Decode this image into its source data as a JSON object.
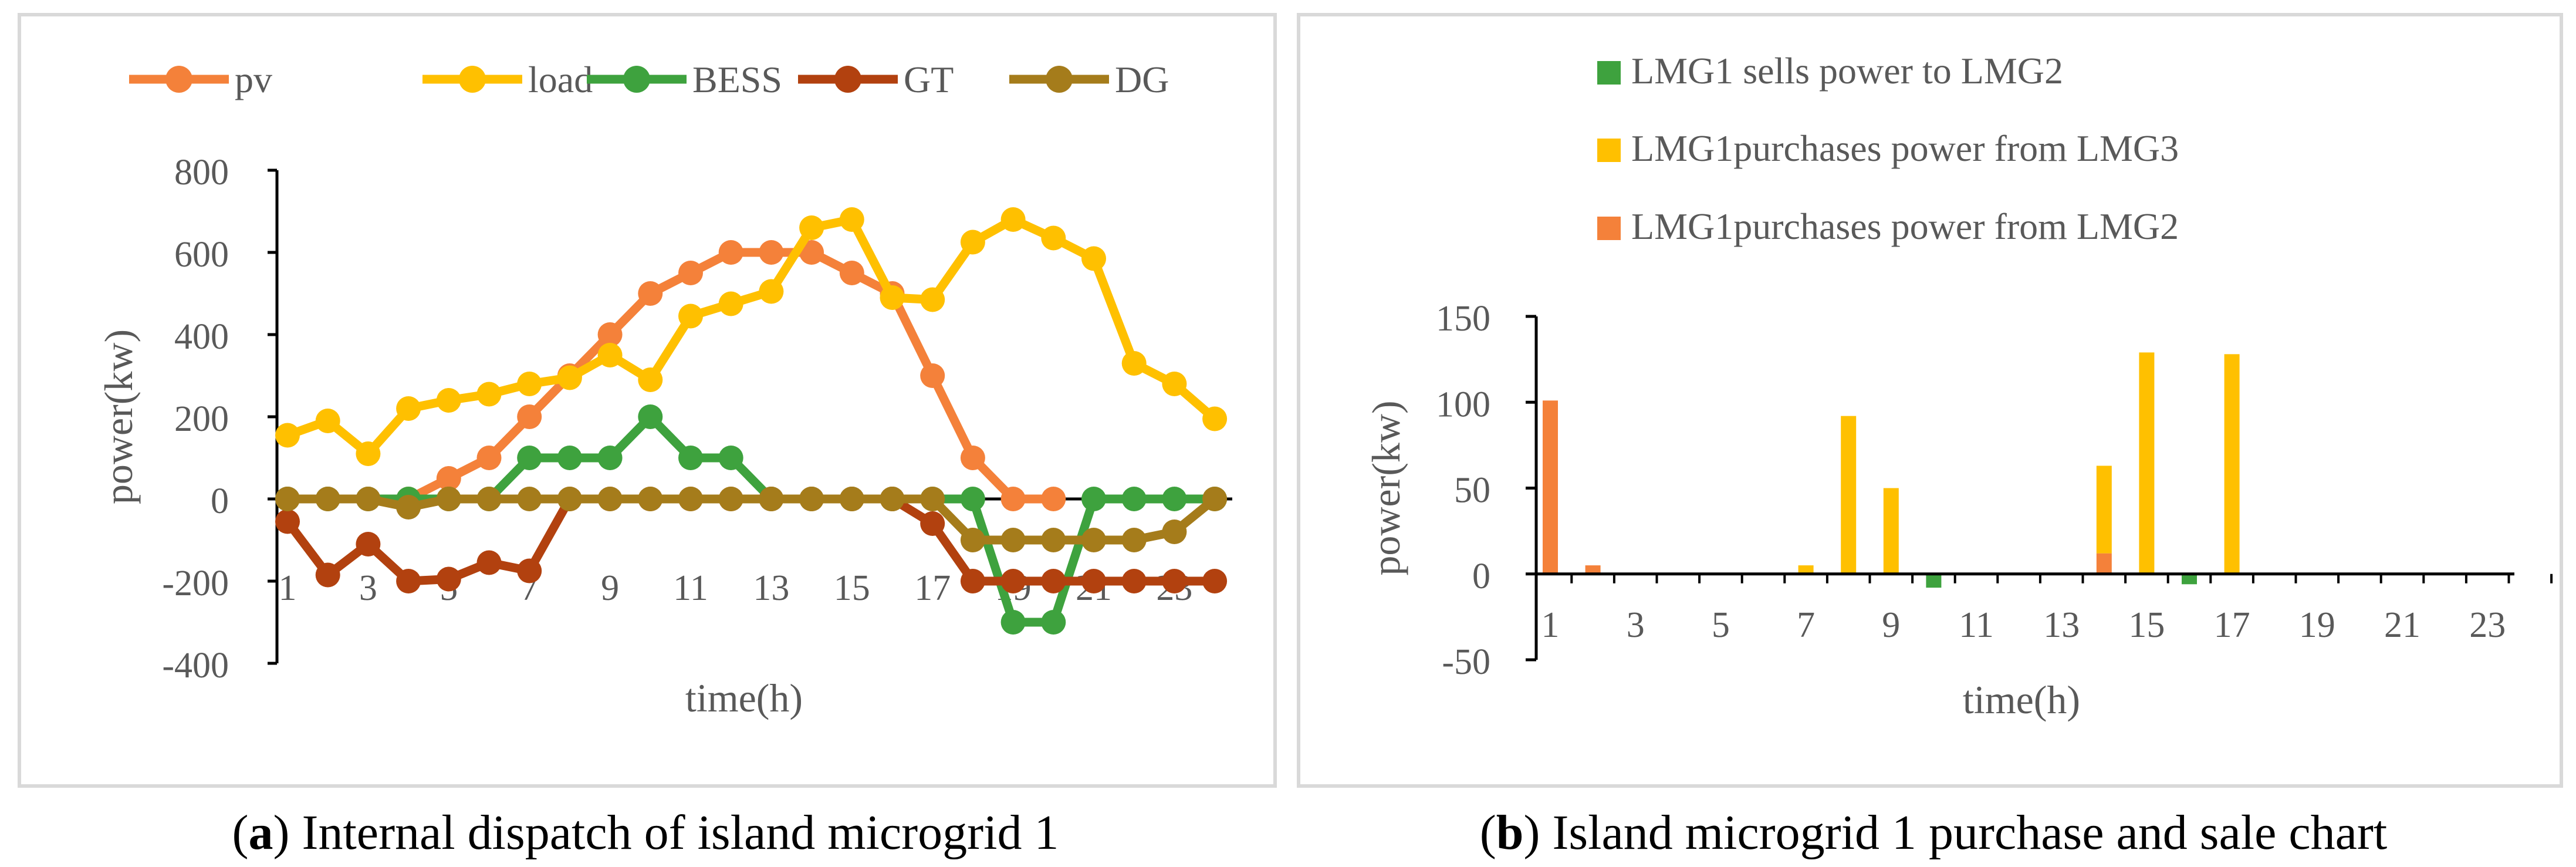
{
  "chart_data": [
    {
      "type": "line",
      "xlabel": "time(h)",
      "ylabel": "power(kw)",
      "ylim": [
        -400,
        800
      ],
      "yticks": [
        -400,
        -200,
        0,
        200,
        400,
        600,
        800
      ],
      "xlim": [
        1,
        24
      ],
      "xticks": [
        1,
        3,
        5,
        7,
        9,
        11,
        13,
        15,
        17,
        19,
        21,
        23
      ],
      "legend_position": "top",
      "x": [
        1,
        2,
        3,
        4,
        5,
        6,
        7,
        8,
        9,
        10,
        11,
        12,
        13,
        14,
        15,
        16,
        17,
        18,
        19,
        20,
        21,
        22,
        23,
        24
      ],
      "series": [
        {
          "name": "pv",
          "color": "#F4813A",
          "values": [
            0,
            0,
            0,
            0,
            50,
            100,
            200,
            300,
            400,
            500,
            550,
            600,
            600,
            600,
            550,
            500,
            300,
            100,
            0,
            0,
            null,
            null,
            null,
            null
          ]
        },
        {
          "name": "load",
          "color": "#FFC000",
          "values": [
            155,
            190,
            110,
            220,
            240,
            255,
            280,
            295,
            350,
            290,
            445,
            475,
            505,
            660,
            680,
            490,
            485,
            625,
            680,
            635,
            585,
            330,
            280,
            195
          ]
        },
        {
          "name": "BESS",
          "color": "#3EA23E",
          "values": [
            0,
            0,
            0,
            0,
            0,
            0,
            100,
            100,
            100,
            200,
            100,
            100,
            0,
            0,
            0,
            0,
            0,
            0,
            -300,
            -300,
            0,
            0,
            0,
            0
          ]
        },
        {
          "name": "GT",
          "color": "#B2410F",
          "values": [
            -55,
            -185,
            -110,
            -200,
            -195,
            -155,
            -175,
            0,
            0,
            0,
            0,
            0,
            0,
            0,
            0,
            0,
            -60,
            -200,
            -200,
            -200,
            -200,
            -200,
            -200,
            -200
          ]
        },
        {
          "name": "DG",
          "color": "#A57C1B",
          "values": [
            0,
            0,
            0,
            -20,
            0,
            0,
            0,
            0,
            0,
            0,
            0,
            0,
            0,
            0,
            0,
            0,
            0,
            -100,
            -100,
            -100,
            -100,
            -100,
            -80,
            0
          ]
        }
      ],
      "caption_label": "a",
      "caption_text": " Internal dispatch of island microgrid 1"
    },
    {
      "type": "bar",
      "xlabel": "time(h)",
      "ylabel": "power(kw)",
      "ylim": [
        -50,
        150
      ],
      "yticks": [
        -50,
        0,
        50,
        100,
        150
      ],
      "xticks": [
        1,
        3,
        5,
        7,
        9,
        11,
        13,
        15,
        17,
        19,
        21,
        23
      ],
      "categories": [
        1,
        2,
        3,
        4,
        5,
        6,
        7,
        8,
        9,
        10,
        11,
        12,
        13,
        14,
        15,
        16,
        17,
        18,
        19,
        20,
        21,
        22,
        23,
        24
      ],
      "legend_position": "top",
      "series": [
        {
          "name": "LMG1 sells power to  LMG2",
          "color": "#3EA23E",
          "values": [
            0,
            0,
            0,
            0,
            0,
            0,
            0,
            0,
            0,
            -8,
            0,
            0,
            0,
            0,
            0,
            -6,
            0,
            0,
            0,
            0,
            0,
            0,
            0,
            0
          ]
        },
        {
          "name": "LMG1purchases power from LMG3",
          "color": "#FFC000",
          "values": [
            0,
            0,
            0,
            0,
            0,
            0,
            5,
            92,
            50,
            0,
            0,
            0,
            0,
            51,
            129,
            0,
            128,
            0,
            0,
            0,
            0,
            0,
            0,
            0
          ]
        },
        {
          "name": "LMG1purchases power from LMG2",
          "color": "#F4813A",
          "values": [
            101,
            5,
            0,
            0,
            0,
            0,
            0,
            0,
            0,
            0,
            0,
            0,
            0,
            12,
            0,
            0,
            0,
            0,
            0,
            0,
            0,
            0,
            0,
            0
          ]
        }
      ],
      "caption_label": "b",
      "caption_text": " Island microgrid 1 purchase and sale chart"
    }
  ]
}
